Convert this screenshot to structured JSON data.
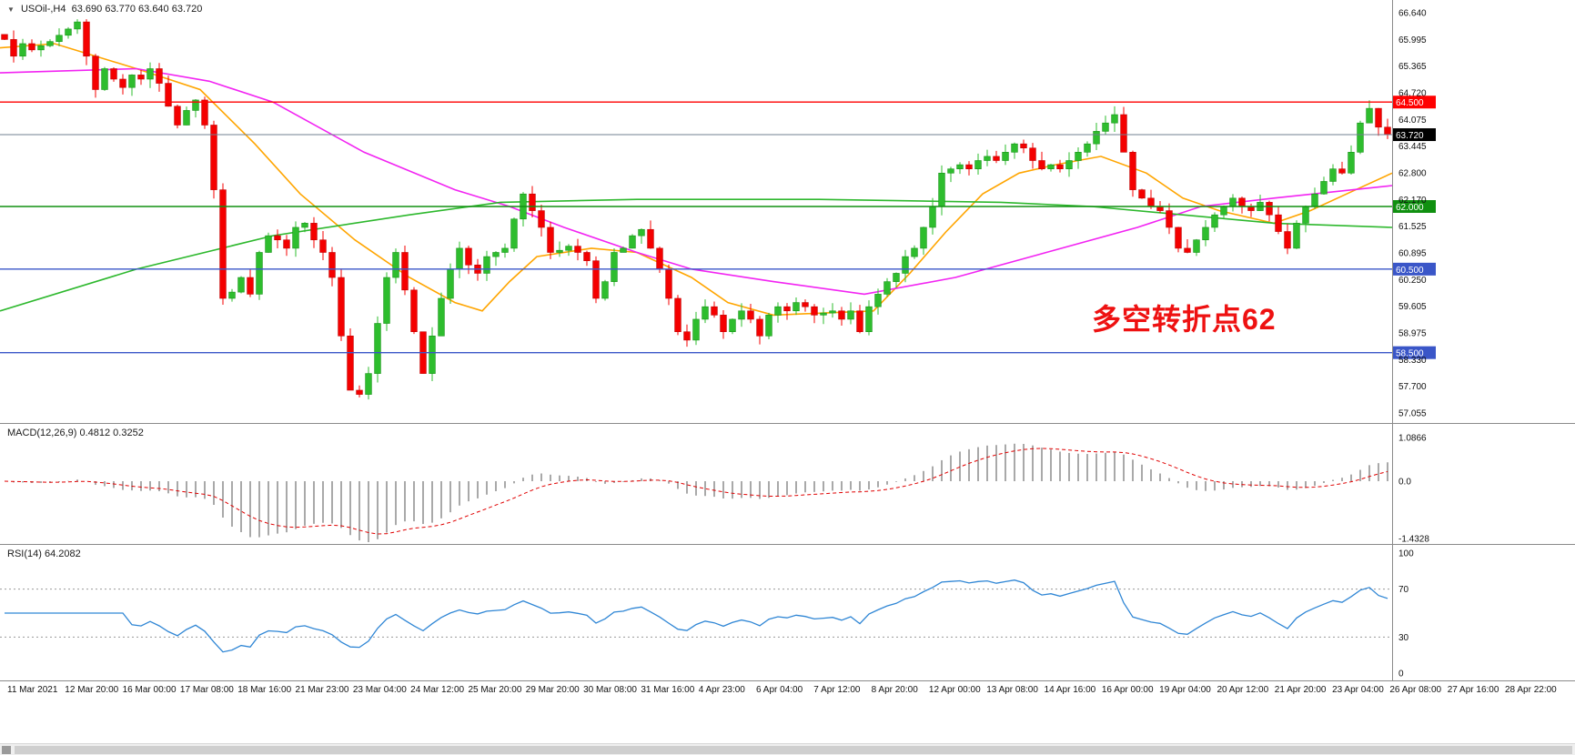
{
  "window": {
    "title": "USOil-,H4 chart"
  },
  "symbol_header": {
    "name": "USOil-,H4",
    "ohlc": "63.690 63.770 63.640 63.720"
  },
  "macd_header": "MACD(12,26,9) 0.4812 0.3252",
  "rsi_header": "RSI(14) 64.2082",
  "annotation": {
    "text": "多空转折点62",
    "color": "#ee1111"
  },
  "colors": {
    "bull": "#2ebd2e",
    "bull_stroke": "#159415",
    "bear": "#f40000",
    "bear_stroke": "#c00000",
    "ma_orange": "#ffa500",
    "ma_magenta": "#f224f2",
    "ma_green": "#2db82d",
    "hline_red": "#ff0000",
    "hline_green": "#109010",
    "hline_blue": "#3a56c8",
    "current_line": "#708090",
    "current_tag_bg": "#000000",
    "macd_hist": "#a9a9a9",
    "macd_signal": "#e00000",
    "rsi_line": "#2f86d5",
    "axis_text": "#111111",
    "separator": "#8a8a8a",
    "dotted_level": "#9a9a9a"
  },
  "axes": {
    "price_ticks": [
      "66.640",
      "65.995",
      "65.365",
      "64.720",
      "64.075",
      "63.445",
      "62.800",
      "62.170",
      "61.525",
      "60.895",
      "60.250",
      "59.605",
      "58.975",
      "58.330",
      "57.700",
      "57.055"
    ],
    "macd_ticks": [
      "1.0866",
      "0.0",
      "-1.4328"
    ],
    "rsi_ticks": [
      "100",
      "70",
      "30",
      "0"
    ],
    "time_labels": [
      "11 Mar 2021",
      "12 Mar 20:00",
      "16 Mar 00:00",
      "17 Mar 08:00",
      "18 Mar 16:00",
      "21 Mar 23:00",
      "23 Mar 04:00",
      "24 Mar 12:00",
      "25 Mar 20:00",
      "29 Mar 20:00",
      "30 Mar 08:00",
      "31 Mar 16:00",
      "4 Apr 23:00",
      "6 Apr 04:00",
      "7 Apr 12:00",
      "8 Apr 20:00",
      "12 Apr 00:00",
      "13 Apr 08:00",
      "14 Apr 16:00",
      "16 Apr 00:00",
      "19 Apr 04:00",
      "20 Apr 12:00",
      "21 Apr 20:00",
      "23 Apr 04:00",
      "26 Apr 08:00",
      "27 Apr 16:00",
      "28 Apr 22:00"
    ]
  },
  "hlines": [
    {
      "price": 64.5,
      "label": "64.500",
      "color": "#ff0000"
    },
    {
      "price": 62.0,
      "label": "62.000",
      "color": "#109010"
    },
    {
      "price": 60.5,
      "label": "60.500",
      "color": "#3a56c8"
    },
    {
      "price": 58.5,
      "label": "58.500",
      "color": "#3a56c8"
    }
  ],
  "current_price": {
    "value": 63.72,
    "label": "63.720"
  },
  "chart_data": {
    "type": "candlestick",
    "symbol": "USOil-",
    "timeframe": "H4",
    "price_axis_range": [
      57.055,
      66.64
    ],
    "note": "H4 candles 11 Mar 2021 - 28 Apr 2021; opens equal previous close; highs/lows add small deterministic wicks",
    "closes": [
      66.0,
      65.6,
      65.9,
      65.75,
      65.85,
      65.95,
      66.1,
      66.25,
      66.42,
      65.6,
      64.8,
      65.3,
      65.05,
      64.85,
      65.15,
      65.05,
      65.3,
      64.95,
      64.4,
      63.95,
      64.3,
      64.55,
      63.95,
      62.4,
      59.8,
      59.95,
      60.3,
      59.9,
      60.9,
      61.3,
      61.2,
      61.0,
      61.5,
      61.6,
      61.2,
      60.9,
      60.3,
      58.9,
      57.6,
      57.5,
      58.0,
      59.2,
      60.3,
      60.9,
      60.0,
      59.0,
      58.0,
      58.9,
      59.8,
      60.5,
      61.0,
      60.6,
      60.4,
      60.8,
      60.9,
      61.0,
      61.7,
      62.3,
      61.9,
      61.5,
      60.9,
      60.95,
      61.05,
      60.9,
      60.7,
      59.8,
      60.2,
      60.9,
      61.0,
      61.3,
      61.45,
      61.0,
      60.5,
      59.8,
      59.0,
      58.8,
      59.3,
      59.6,
      59.4,
      59.0,
      59.3,
      59.5,
      59.3,
      58.9,
      59.4,
      59.6,
      59.5,
      59.7,
      59.6,
      59.4,
      59.45,
      59.5,
      59.3,
      59.5,
      59.0,
      59.6,
      59.9,
      60.2,
      60.4,
      60.8,
      61.0,
      61.5,
      62.0,
      62.8,
      62.9,
      63.0,
      62.9,
      63.1,
      63.2,
      63.1,
      63.3,
      63.5,
      63.4,
      63.1,
      62.9,
      63.0,
      62.9,
      63.1,
      63.3,
      63.5,
      63.8,
      64.0,
      64.2,
      63.3,
      62.4,
      62.2,
      62.0,
      61.9,
      61.5,
      61.0,
      60.9,
      61.2,
      61.5,
      61.8,
      62.0,
      62.2,
      62.0,
      61.9,
      62.1,
      61.8,
      61.4,
      61.0,
      61.6,
      62.0,
      62.3,
      62.6,
      62.9,
      62.8,
      63.3,
      64.0,
      64.35,
      63.9,
      63.72
    ],
    "wick_seed": 7,
    "wick_amplitude": 0.22,
    "moving_averages": [
      {
        "name": "ma-fast-orange",
        "color_key": "ma_orange",
        "points": [
          [
            0,
            65.8
          ],
          [
            60,
            65.9
          ],
          [
            150,
            65.3
          ],
          [
            220,
            64.8
          ],
          [
            280,
            63.5
          ],
          [
            330,
            62.3
          ],
          [
            390,
            61.2
          ],
          [
            450,
            60.3
          ],
          [
            500,
            59.7
          ],
          [
            530,
            59.5
          ],
          [
            560,
            60.2
          ],
          [
            590,
            60.8
          ],
          [
            650,
            61.0
          ],
          [
            700,
            60.9
          ],
          [
            760,
            60.3
          ],
          [
            800,
            59.7
          ],
          [
            850,
            59.4
          ],
          [
            960,
            59.5
          ],
          [
            1000,
            60.4
          ],
          [
            1040,
            61.4
          ],
          [
            1080,
            62.3
          ],
          [
            1120,
            62.8
          ],
          [
            1160,
            63.0
          ],
          [
            1210,
            63.2
          ],
          [
            1260,
            62.8
          ],
          [
            1300,
            62.2
          ],
          [
            1340,
            61.9
          ],
          [
            1400,
            61.6
          ],
          [
            1440,
            61.9
          ],
          [
            1480,
            62.3
          ],
          [
            1530,
            62.8
          ]
        ]
      },
      {
        "name": "ma-slow-magenta",
        "color_key": "ma_magenta",
        "points": [
          [
            0,
            65.2
          ],
          [
            150,
            65.3
          ],
          [
            230,
            65.0
          ],
          [
            300,
            64.5
          ],
          [
            400,
            63.3
          ],
          [
            500,
            62.4
          ],
          [
            560,
            62.0
          ],
          [
            620,
            61.5
          ],
          [
            700,
            60.9
          ],
          [
            760,
            60.5
          ],
          [
            850,
            60.2
          ],
          [
            950,
            59.9
          ],
          [
            1050,
            60.3
          ],
          [
            1150,
            60.9
          ],
          [
            1250,
            61.5
          ],
          [
            1320,
            62.0
          ],
          [
            1400,
            62.2
          ],
          [
            1530,
            62.5
          ]
        ]
      },
      {
        "name": "ma-long-green",
        "color_key": "ma_green",
        "points": [
          [
            0,
            59.5
          ],
          [
            150,
            60.5
          ],
          [
            300,
            61.3
          ],
          [
            450,
            61.8
          ],
          [
            550,
            62.1
          ],
          [
            700,
            62.17
          ],
          [
            900,
            62.17
          ],
          [
            1100,
            62.1
          ],
          [
            1200,
            62.0
          ],
          [
            1300,
            61.8
          ],
          [
            1400,
            61.6
          ],
          [
            1530,
            61.5
          ]
        ]
      }
    ],
    "indicators": [
      {
        "name": "MACD",
        "params": "12,26,9",
        "values_shown": [
          0.4812,
          0.3252
        ],
        "axis": [
          1.0866,
          0.0,
          -1.4328
        ]
      },
      {
        "name": "RSI",
        "params": "14",
        "value_shown": 64.2082,
        "levels": [
          70,
          30
        ],
        "axis": [
          100,
          70,
          30,
          0
        ]
      }
    ]
  },
  "scrollbar": {
    "present": true
  }
}
